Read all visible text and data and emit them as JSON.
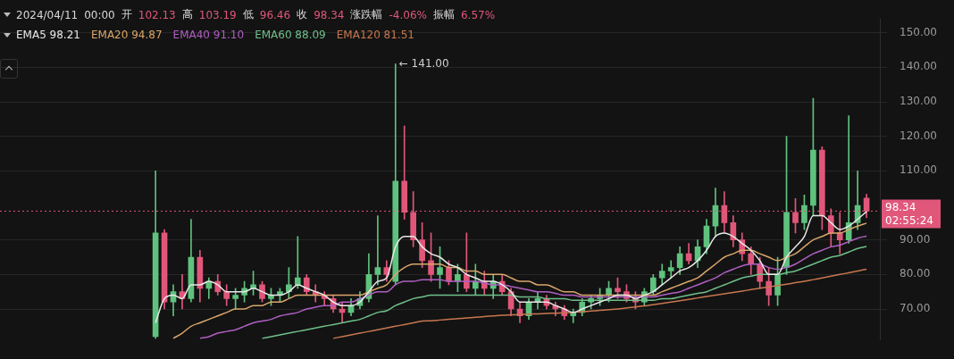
{
  "chart_data": {
    "type": "candlestick",
    "title": "2024/04/11 00:00 开 102.13 高 103.19 低 96.46 收 98.34 涨跌幅 -4.06% 振幅 6.57%",
    "categories": [
      null,
      null,
      null,
      null,
      null,
      null,
      null,
      null,
      null,
      null,
      null,
      null,
      null,
      null,
      null,
      null,
      null,
      null,
      null,
      null,
      null,
      null,
      null,
      null,
      null,
      null,
      null,
      null,
      null,
      null,
      null,
      null,
      null,
      null,
      null,
      null,
      null,
      null,
      null,
      null,
      null,
      null,
      null,
      null,
      null,
      null,
      null,
      null,
      null,
      null,
      null,
      null,
      null,
      null,
      null,
      null,
      null,
      null,
      null,
      null,
      null,
      null,
      null,
      null,
      null,
      null,
      null,
      null,
      null,
      null,
      null,
      null,
      null,
      null,
      null,
      null,
      null,
      null,
      null,
      null,
      null,
      null,
      null,
      null,
      null,
      null,
      null,
      null,
      null,
      null,
      null,
      null,
      null,
      null,
      null,
      null,
      null,
      null,
      null
    ],
    "ohlc": [
      null,
      null,
      null,
      null,
      null,
      null,
      null,
      null,
      null,
      null,
      null,
      null,
      null,
      null,
      null,
      null,
      null,
      [
        62,
        110,
        61.5,
        92
      ],
      [
        92,
        93,
        70,
        72
      ],
      [
        72,
        77,
        68,
        75
      ],
      [
        75,
        80,
        70,
        73
      ],
      [
        73,
        96,
        72,
        85
      ],
      [
        85,
        87,
        72,
        76
      ],
      [
        76,
        79,
        73,
        78
      ],
      [
        78,
        80,
        74,
        75
      ],
      [
        75,
        77,
        71,
        73
      ],
      [
        73,
        76,
        70,
        74
      ],
      [
        74,
        78,
        72,
        76
      ],
      [
        76,
        81,
        74,
        77
      ],
      [
        77,
        78,
        72,
        73
      ],
      [
        73,
        76,
        71,
        74
      ],
      [
        74,
        76,
        72,
        75
      ],
      [
        75,
        82,
        73,
        77
      ],
      [
        77,
        91,
        76,
        79
      ],
      [
        79,
        80,
        74,
        75
      ],
      [
        75,
        77,
        72,
        74
      ],
      [
        74,
        75,
        71,
        73
      ],
      [
        73,
        74,
        69,
        70
      ],
      [
        70,
        72,
        66,
        69
      ],
      [
        69,
        73,
        68,
        71
      ],
      [
        71,
        75,
        70,
        73
      ],
      [
        73,
        86,
        72,
        80
      ],
      [
        80,
        97,
        77,
        82
      ],
      [
        82,
        84,
        78,
        80
      ],
      [
        78,
        141,
        77,
        107
      ],
      [
        107,
        123,
        96,
        98
      ],
      [
        98,
        104,
        88,
        90
      ],
      [
        90,
        95,
        82,
        84
      ],
      [
        84,
        92,
        78,
        80
      ],
      [
        80,
        88,
        76,
        82
      ],
      [
        82,
        84,
        77,
        78
      ],
      [
        78,
        83,
        75,
        80
      ],
      [
        80,
        92,
        75,
        76
      ],
      [
        76,
        83,
        74,
        78
      ],
      [
        78,
        81,
        74,
        76
      ],
      [
        76,
        80,
        73,
        78
      ],
      [
        78,
        80,
        74,
        75
      ],
      [
        75,
        76,
        68,
        70
      ],
      [
        70,
        72,
        66,
        68
      ],
      [
        68,
        73,
        67,
        72
      ],
      [
        72,
        75,
        70,
        73
      ],
      [
        73,
        74,
        70,
        71
      ],
      [
        71,
        72,
        68,
        70
      ],
      [
        70,
        71,
        67,
        68
      ],
      [
        68,
        70,
        66,
        69
      ],
      [
        69,
        73,
        68,
        72
      ],
      [
        72,
        74,
        70,
        73
      ],
      [
        73,
        76,
        71,
        74
      ],
      [
        74,
        78,
        72,
        76
      ],
      [
        76,
        79,
        73,
        75
      ],
      [
        75,
        77,
        72,
        73
      ],
      [
        73,
        75,
        70,
        72
      ],
      [
        72,
        76,
        71,
        75
      ],
      [
        75,
        80,
        74,
        79
      ],
      [
        79,
        83,
        77,
        81
      ],
      [
        81,
        84,
        79,
        82
      ],
      [
        82,
        88,
        80,
        86
      ],
      [
        86,
        89,
        83,
        84
      ],
      [
        84,
        90,
        82,
        88
      ],
      [
        88,
        96,
        86,
        94
      ],
      [
        94,
        105,
        91,
        100
      ],
      [
        100,
        104,
        92,
        95
      ],
      [
        95,
        97,
        88,
        90
      ],
      [
        90,
        92,
        84,
        86
      ],
      [
        86,
        88,
        80,
        83
      ],
      [
        83,
        85,
        76,
        78
      ],
      [
        78,
        82,
        71,
        74
      ],
      [
        74,
        85,
        71,
        80
      ],
      [
        82,
        120,
        80,
        98
      ],
      [
        98,
        102,
        92,
        95
      ],
      [
        95,
        103,
        93,
        100
      ],
      [
        100,
        131,
        97,
        116
      ],
      [
        116,
        117,
        93,
        97
      ],
      [
        97,
        99,
        88,
        92
      ],
      [
        92,
        98,
        86,
        90
      ],
      [
        90,
        126,
        89,
        95
      ],
      [
        95,
        110,
        93,
        100
      ],
      [
        102.13,
        103.19,
        96.46,
        98.34
      ],
      null
    ],
    "series": [
      {
        "name": "EMA5 98.21",
        "type": "line",
        "color": "#e8e8e8",
        "values": [
          null,
          null,
          null,
          null,
          null,
          null,
          null,
          null,
          null,
          null,
          null,
          null,
          null,
          null,
          null,
          null,
          null,
          66,
          73,
          74,
          73,
          77,
          77,
          78,
          77,
          75,
          75,
          75,
          76,
          75,
          74,
          74,
          75,
          77,
          76,
          75,
          74,
          72,
          71,
          71,
          72,
          75,
          78,
          79,
          88,
          91,
          91,
          88,
          86,
          85,
          83,
          82,
          80,
          79,
          78,
          78,
          77,
          75,
          72,
          72,
          72,
          72,
          71,
          70,
          69,
          70,
          71,
          72,
          73,
          74,
          74,
          73,
          74,
          75,
          77,
          79,
          81,
          82,
          84,
          87,
          91,
          92,
          91,
          89,
          87,
          84,
          80,
          80,
          85,
          88,
          91,
          97,
          97,
          95,
          93,
          94,
          96,
          98.21,
          null
        ]
      },
      {
        "name": "EMA20 94.87",
        "type": "line",
        "color": "#d9a66a",
        "values": [
          null,
          null,
          null,
          null,
          null,
          null,
          null,
          null,
          null,
          null,
          null,
          null,
          null,
          null,
          null,
          null,
          null,
          null,
          null,
          61.5,
          63,
          65,
          66,
          67,
          68,
          69,
          70,
          70,
          71,
          71,
          72,
          72,
          73,
          74,
          74,
          74,
          74,
          74,
          74,
          74,
          74,
          75,
          76,
          77,
          80,
          82,
          83,
          83,
          83,
          83,
          82,
          82,
          81,
          81,
          80,
          80,
          80,
          79,
          78,
          78,
          77,
          77,
          76,
          75,
          75,
          74,
          74,
          74,
          74,
          74,
          74,
          74,
          74,
          74,
          75,
          76,
          77,
          78,
          79,
          81,
          83,
          85,
          86,
          87,
          87,
          86,
          85,
          84,
          85,
          86,
          88,
          90,
          91,
          92,
          92,
          93,
          94,
          94.87,
          null
        ]
      },
      {
        "name": "EMA40 91.10",
        "type": "line",
        "color": "#b05fc4",
        "values": [
          null,
          null,
          null,
          null,
          null,
          null,
          null,
          null,
          null,
          null,
          null,
          null,
          null,
          null,
          null,
          null,
          null,
          null,
          null,
          null,
          null,
          null,
          61.5,
          62,
          63,
          63.5,
          64,
          65,
          66,
          66.5,
          67,
          68,
          68.5,
          69,
          70,
          70.5,
          71,
          71,
          72,
          72,
          73,
          74,
          75,
          75,
          77,
          78,
          78,
          78.5,
          78.5,
          78.5,
          78,
          78,
          78,
          78,
          77.5,
          77,
          77,
          76.5,
          76,
          75.5,
          75,
          75,
          74.5,
          74,
          74,
          73.5,
          73.5,
          73.5,
          73.5,
          73.5,
          73.5,
          73.5,
          73.5,
          73.5,
          74,
          74.5,
          75,
          76,
          77,
          78,
          79,
          80.5,
          81.5,
          82.5,
          83,
          83,
          82,
          81.5,
          82,
          83,
          84.5,
          86,
          87,
          88,
          88.5,
          89.5,
          90.5,
          91.1,
          null
        ]
      },
      {
        "name": "EMA60 88.09",
        "type": "line",
        "color": "#6fbf8a",
        "values": [
          null,
          null,
          null,
          null,
          null,
          null,
          null,
          null,
          null,
          null,
          null,
          null,
          null,
          null,
          null,
          null,
          null,
          null,
          null,
          null,
          null,
          null,
          null,
          null,
          null,
          null,
          null,
          null,
          null,
          61.5,
          62,
          62.5,
          63,
          63.5,
          64,
          64.5,
          65,
          65.5,
          66,
          66.5,
          67,
          68,
          69,
          69.5,
          71,
          72,
          73,
          73.5,
          74,
          74,
          74,
          74,
          74,
          74,
          74,
          74,
          74,
          74,
          73.5,
          73.5,
          73.5,
          73,
          73,
          73,
          72.5,
          72.5,
          72.5,
          72.5,
          72.5,
          72.5,
          72.5,
          72.5,
          72.5,
          72.5,
          73,
          73,
          73.5,
          74,
          74.5,
          75,
          76,
          77,
          78,
          79,
          79.5,
          80,
          80,
          80,
          80.5,
          81,
          82,
          83,
          84,
          85,
          85.5,
          86.5,
          87.5,
          88.09,
          null
        ]
      },
      {
        "name": "EMA120 81.51",
        "type": "line",
        "color": "#c8774f",
        "values": [
          null,
          null,
          null,
          null,
          null,
          null,
          null,
          null,
          null,
          null,
          null,
          null,
          null,
          null,
          null,
          null,
          null,
          null,
          null,
          null,
          null,
          null,
          null,
          null,
          null,
          null,
          null,
          null,
          null,
          null,
          null,
          null,
          null,
          null,
          null,
          null,
          null,
          61.5,
          62,
          62.5,
          63,
          63.5,
          64,
          64.5,
          65,
          65.5,
          66,
          66.5,
          66.6,
          66.8,
          67,
          67.2,
          67.4,
          67.6,
          67.8,
          68,
          68.2,
          68.3,
          68.4,
          68.5,
          68.6,
          68.7,
          68.8,
          68.9,
          69,
          69.2,
          69.4,
          69.6,
          69.8,
          70,
          70.3,
          70.6,
          70.9,
          71.2,
          71.6,
          72,
          72.4,
          72.8,
          73.2,
          73.6,
          74,
          74.4,
          74.8,
          75.2,
          75.6,
          76,
          76.4,
          76.8,
          77.2,
          77.6,
          78,
          78.5,
          79,
          79.5,
          80,
          80.5,
          81,
          81.51,
          null
        ]
      }
    ],
    "ylim": [
      61,
      154
    ],
    "yticks": [
      {
        "value": 70,
        "label": "70.00"
      },
      {
        "value": 80,
        "label": "80.00"
      },
      {
        "value": 90,
        "label": "90.00"
      },
      {
        "value": 110,
        "label": "110.00"
      },
      {
        "value": 120,
        "label": "120.00"
      },
      {
        "value": 130,
        "label": "130.00"
      },
      {
        "value": 140,
        "label": "140.00"
      },
      {
        "value": 150,
        "label": "150.00"
      }
    ],
    "grid": "y",
    "legend": "top left",
    "tick_labels": "y",
    "ref_lines": [
      {
        "axis": "y",
        "value": 98.34,
        "label": "98.34",
        "color": "#e0577a",
        "line_style": "dotted"
      }
    ],
    "annotations": [
      "← 141.00",
      "02:55:24"
    ]
  }
}
